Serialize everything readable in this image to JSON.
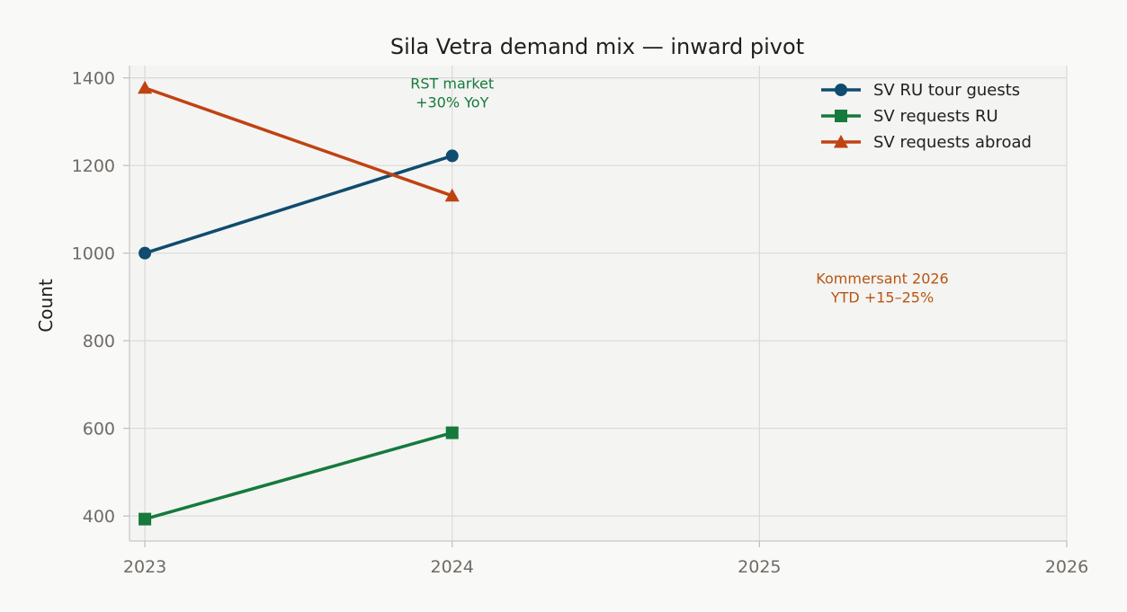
{
  "chart_data": {
    "type": "line",
    "title": "Sila Vetra demand mix — inward pivot",
    "xlabel": "",
    "ylabel": "Count",
    "x": [
      2023,
      2024
    ],
    "x_ticks": [
      "2023",
      "2024",
      "2025",
      "2026"
    ],
    "y_ticks": [
      "400",
      "600",
      "800",
      "1000",
      "1200",
      "1400"
    ],
    "xlim": [
      2022.95,
      2026
    ],
    "ylim": [
      343,
      1428
    ],
    "grid": true,
    "legend_position": "upper-right",
    "series": [
      {
        "name": "SV RU tour guests",
        "values": [
          1000,
          1222
        ],
        "color": "#0f4c6e",
        "marker": "circle"
      },
      {
        "name": "SV requests RU",
        "values": [
          393,
          590
        ],
        "color": "#157a3c",
        "marker": "square"
      },
      {
        "name": "SV requests abroad",
        "values": [
          1377,
          1131
        ],
        "color": "#c04212",
        "marker": "triangle"
      }
    ],
    "annotations": [
      {
        "lines": [
          "RST market",
          "+30% YoY"
        ],
        "x": 2024,
        "y": 1376,
        "color": "#157a3c"
      },
      {
        "lines": [
          "Kommersant 2026",
          "YTD +15–25%"
        ],
        "x": 2025.4,
        "y": 931,
        "color": "#b85510"
      }
    ]
  }
}
